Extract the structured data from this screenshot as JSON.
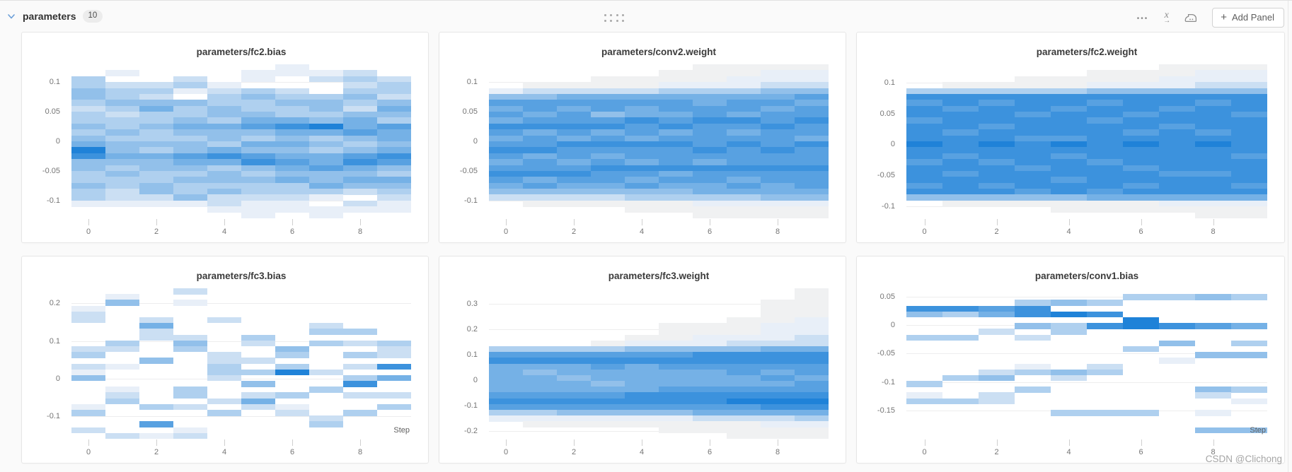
{
  "section": {
    "title": "parameters",
    "count": "10"
  },
  "toolbar": {
    "ellipsis_glyph": "•••",
    "x_axis_glyph": "x",
    "x_axis_arrow_glyph": "→",
    "plus_glyph": "+",
    "add_panel_label": "Add Panel"
  },
  "icons": [
    "chevron-down-icon",
    "drag-handle-icon",
    "ellipsis-icon",
    "x-axis-settings-icon",
    "panel-settings-icon",
    "plus-icon"
  ],
  "watermark": "CSDN @Clichong",
  "palette": {
    "min_color": "#e8eff8",
    "max_color": "#1f82d8",
    "sparse_color": "#f0f1f2",
    "accent_blue": "#6b9fd8"
  },
  "chart_data": [
    {
      "type": "heatmap",
      "title": "parameters/fc2.bias",
      "x": {
        "ticks": [
          0,
          2,
          4,
          6,
          8
        ],
        "n_columns": 10,
        "label": "Step",
        "show_label": false
      },
      "y": {
        "ticks": [
          "0.1",
          "0.05",
          "0",
          "-0.05",
          "-0.1"
        ],
        "range": [
          0.13,
          -0.13
        ]
      },
      "bins": 26,
      "encoding": "each column string = 26 vertical bins top(ymax) to bottom(ymin); digit 0=empty, 1=faint gray, 2-9=light to dark blue density",
      "columns": [
        "00445543445456985544544200",
        "02034454344545565454433200",
        "00034356445445465544553200",
        "00342054456545576545445200",
        "00023445546554686455453320",
        "02204544567546578545443222",
        "22003454468656567656443220",
        "02300455459645466755642022",
        "03434543566754578656530320",
        "00344356547665687546543220"
      ]
    },
    {
      "type": "heatmap",
      "title": "parameters/conv2.weight",
      "x": {
        "ticks": [
          0,
          2,
          4,
          6,
          8
        ],
        "n_columns": 10,
        "label": "Step",
        "show_label": false
      },
      "y": {
        "ticks": [
          "0.1",
          "0.05",
          "0",
          "-0.05",
          "-0.1"
        ],
        "range": [
          0.13,
          -0.13
        ]
      },
      "bins": 26,
      "columns": [
        "00002576768767876787653000",
        "00013577678677867786753100",
        "00013676778768776787653100",
        "00113677578678767877653100",
        "00113676687768776876754110",
        "01124677678678777867654110",
        "11124667787777876877664211",
        "11224677687678777876764211",
        "12235676778777877877665211",
        "12235767787768777877765211"
      ]
    },
    {
      "type": "heatmap",
      "title": "parameters/fc2.weight",
      "x": {
        "ticks": [
          0,
          2,
          4,
          6,
          8
        ],
        "n_columns": 10,
        "label": "Step",
        "show_label": false
      },
      "y": {
        "ticks": [
          "0.1",
          "0.05",
          "0",
          "-0.05",
          "-0.1"
        ],
        "range": [
          0.13,
          -0.12
        ]
      },
      "bins": 26,
      "columns": [
        "00004878878889887888785000",
        "00014887888788878878885100",
        "00014878887889887888785100",
        "00114888788878888788875100",
        "00114887888879878887885110",
        "01125878878888887888876110",
        "01125888788789888788786110",
        "11225887887888888878886210",
        "12235878888789888878886211",
        "12235888788888878888786211"
      ]
    },
    {
      "type": "heatmap",
      "title": "parameters/fc3.bias",
      "x": {
        "ticks": [
          0,
          2,
          4,
          6,
          8
        ],
        "n_columns": 10,
        "label": "Step",
        "show_label": true
      },
      "y": {
        "ticks": [
          "0.2",
          "0.1",
          "0",
          "-0.1"
        ],
        "range": [
          0.24,
          -0.16
        ]
      },
      "bins": 26,
      "columns": [
        "00023300003403250000240030",
        "02500000043002000234000003",
        "00000363300050000000400702",
        "30200000354000000440300023",
        "00000300000334430003040000",
        "00000000430030405036300000",
        "00000000005404900040230000",
        "00000034040000300400003400",
        "00000004030403048030040000",
        "00000000043308060030400000"
      ]
    },
    {
      "type": "heatmap",
      "title": "parameters/fc3.weight",
      "x": {
        "ticks": [
          0,
          2,
          4,
          6,
          8
        ],
        "n_columns": 10,
        "label": "Step",
        "show_label": false
      },
      "y": {
        "ticks": [
          "0.3",
          "0.2",
          "0.1",
          "0",
          "-0.1",
          "-0.2"
        ],
        "range": [
          0.36,
          -0.23
        ]
      },
      "bins": 26,
      "columns": [
        "00000000004786666678742000",
        "00000000004786566678742100",
        "00000000004786656678752100",
        "00000000014787665678752100",
        "00000000125786666688752100",
        "00000011125787666788752110",
        "00000011225887666788763110",
        "00000111235887766789763111",
        "00111122236887676789863211",
        "11111222336887767789864211"
      ]
    },
    {
      "type": "heatmap",
      "title": "parameters/conv1.bias",
      "x": {
        "ticks": [
          0,
          2,
          4,
          6,
          8
        ],
        "n_columns": 10,
        "label": "Step",
        "show_label": true
      },
      "y": {
        "ticks": [
          "0.05",
          "0",
          "-0.05",
          "-0.1",
          "-0.15"
        ],
        "range": [
          0.065,
          -0.2
        ]
      },
      "bins": 26,
      "columns": [
        "00085000400000004024000000",
        "00084000400000040004000000",
        "00076003000000350033000000",
        "00488050300002400400000000",
        "00509044000000530000040000",
        "00408080000003400000040000",
        "04000990004000000000040000",
        "04000080050020000000000000",
        "05000070000500000530020050",
        "04000060040500000402000050"
      ]
    }
  ]
}
